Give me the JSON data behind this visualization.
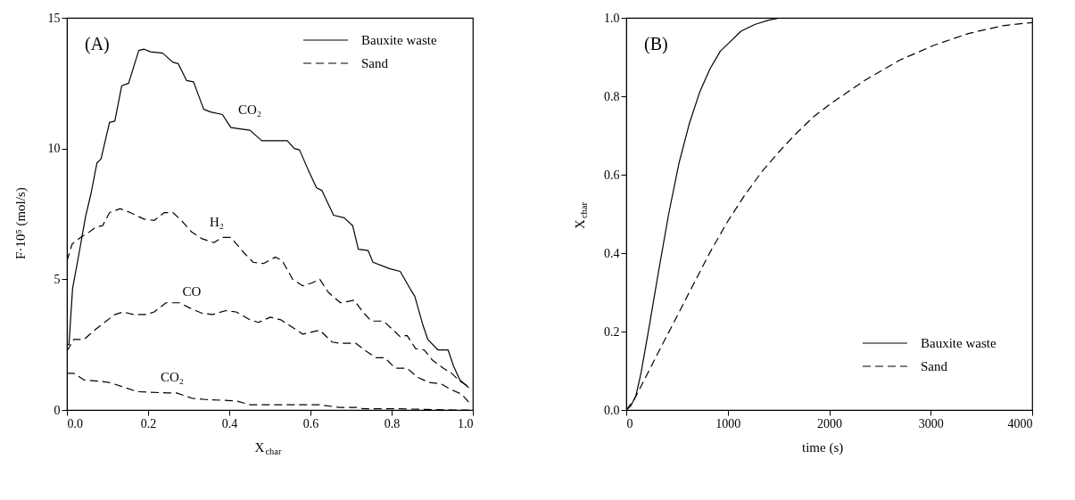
{
  "chart_data": [
    {
      "type": "line",
      "xlabel": "X$_{char}$",
      "ylabel": "F·10⁵ (mol/s)",
      "xlim": [
        0,
        1
      ],
      "ylim": [
        0,
        15
      ],
      "xticks": [
        {
          "value": 0,
          "label": "0.0"
        },
        {
          "value": 0.2,
          "label": "0.2"
        },
        {
          "value": 0.4,
          "label": "0.4"
        },
        {
          "value": 0.6,
          "label": "0.6"
        },
        {
          "value": 0.8,
          "label": "0.8"
        },
        {
          "value": 1,
          "label": "1.0"
        }
      ],
      "yticks": [
        0,
        5,
        10,
        15
      ],
      "grid": false,
      "legend": "top right",
      "annotations": [
        "(A)",
        "CO₂",
        "H₂",
        "CO",
        "CO₂"
      ],
      "series": [
        {
          "name": "Bauxite waste",
          "color": "#000000",
          "line_style": "solid",
          "x": [
            0,
            0.005,
            0.014,
            0.03,
            0.046,
            0.059,
            0.074,
            0.084,
            0.105,
            0.118,
            0.135,
            0.152,
            0.177,
            0.19,
            0.206,
            0.236,
            0.261,
            0.274,
            0.295,
            0.312,
            0.337,
            0.354,
            0.383,
            0.404,
            0.451,
            0.48,
            0.531,
            0.543,
            0.56,
            0.573,
            0.594,
            0.615,
            0.628,
            0.657,
            0.683,
            0.704,
            0.718,
            0.742,
            0.754,
            0.796,
            0.821,
            0.847,
            0.857,
            0.876,
            0.889,
            0.914,
            0.939,
            0.952,
            0.968,
            0.99
          ],
          "values": [
            2.5,
            2.5,
            4.65,
            6.0,
            7.4,
            8.25,
            9.45,
            9.6,
            11.0,
            11.05,
            12.4,
            12.5,
            13.75,
            13.8,
            13.7,
            13.65,
            13.3,
            13.25,
            12.6,
            12.55,
            11.5,
            11.4,
            11.3,
            10.8,
            10.7,
            10.3,
            10.3,
            10.3,
            10.0,
            9.95,
            9.2,
            8.5,
            8.4,
            7.45,
            7.35,
            7.05,
            6.15,
            6.1,
            5.65,
            5.4,
            5.3,
            4.6,
            4.35,
            3.3,
            2.7,
            2.3,
            2.3,
            1.7,
            1.15,
            0.85
          ]
        },
        {
          "name": "Sand",
          "color": "#000000",
          "line_style": "dashed",
          "x": [
            0,
            0.013,
            0.038,
            0.05,
            0.072,
            0.088,
            0.105,
            0.131,
            0.156,
            0.19,
            0.215,
            0.24,
            0.261,
            0.282,
            0.308,
            0.333,
            0.362,
            0.383,
            0.404,
            0.434,
            0.459,
            0.484,
            0.514,
            0.531,
            0.556,
            0.581,
            0.602,
            0.623,
            0.644,
            0.674,
            0.708,
            0.729,
            0.75,
            0.78,
            0.808,
            0.821,
            0.838,
            0.859,
            0.88,
            0.901,
            0.927,
            0.948,
            0.968,
            0.99
          ],
          "values": [
            5.7,
            6.35,
            6.65,
            6.75,
            7.0,
            7.05,
            7.55,
            7.7,
            7.55,
            7.3,
            7.25,
            7.55,
            7.55,
            7.25,
            6.8,
            6.55,
            6.4,
            6.6,
            6.6,
            6.05,
            5.65,
            5.6,
            5.85,
            5.7,
            5.0,
            4.75,
            4.85,
            5.0,
            4.5,
            4.1,
            4.2,
            3.75,
            3.4,
            3.4,
            3.0,
            2.8,
            2.85,
            2.35,
            2.3,
            1.9,
            1.6,
            1.4,
            1.1,
            0.9
          ]
        },
        {
          "color": "#000000",
          "line_style": "dashed",
          "x": [
            0,
            0.017,
            0.042,
            0.072,
            0.097,
            0.118,
            0.139,
            0.164,
            0.194,
            0.215,
            0.244,
            0.278,
            0.303,
            0.333,
            0.358,
            0.392,
            0.417,
            0.451,
            0.472,
            0.501,
            0.527,
            0.552,
            0.581,
            0.623,
            0.653,
            0.674,
            0.712,
            0.737,
            0.762,
            0.783,
            0.809,
            0.838,
            0.864,
            0.893,
            0.922,
            0.944,
            0.973,
            0.99
          ],
          "values": [
            2.25,
            2.7,
            2.7,
            3.1,
            3.4,
            3.65,
            3.75,
            3.65,
            3.65,
            3.75,
            4.1,
            4.1,
            3.9,
            3.7,
            3.65,
            3.8,
            3.75,
            3.45,
            3.35,
            3.55,
            3.45,
            3.2,
            2.9,
            3.05,
            2.6,
            2.55,
            2.55,
            2.25,
            2.0,
            2.0,
            1.6,
            1.6,
            1.25,
            1.05,
            1.0,
            0.8,
            0.6,
            0.3
          ]
        },
        {
          "color": "#000000",
          "line_style": "dashed",
          "x": [
            0,
            0.017,
            0.042,
            0.08,
            0.105,
            0.135,
            0.173,
            0.249,
            0.27,
            0.308,
            0.341,
            0.417,
            0.451,
            0.535,
            0.623,
            0.67,
            0.72,
            0.728,
            0.804,
            0.888,
            0.956,
            0.99
          ],
          "values": [
            1.4,
            1.4,
            1.15,
            1.1,
            1.05,
            0.9,
            0.7,
            0.65,
            0.65,
            0.45,
            0.4,
            0.35,
            0.2,
            0.2,
            0.2,
            0.1,
            0.1,
            0.05,
            0.05,
            0.02,
            0,
            0
          ]
        }
      ]
    },
    {
      "type": "line",
      "xlabel": "time (s)",
      "ylabel": "X$_{char}$",
      "xlim": [
        0,
        4000
      ],
      "ylim": [
        0,
        1
      ],
      "xticks": [
        0,
        1000,
        2000,
        3000,
        4000
      ],
      "yticks": [
        {
          "value": 0,
          "label": "0.0"
        },
        {
          "value": 0.2,
          "label": "0.2"
        },
        {
          "value": 0.4,
          "label": "0.4"
        },
        {
          "value": 0.6,
          "label": "0.6"
        },
        {
          "value": 0.8,
          "label": "0.8"
        },
        {
          "value": 1,
          "label": "1.0"
        }
      ],
      "grid": false,
      "legend": "bottom right",
      "annotations": [
        "(B)"
      ],
      "series": [
        {
          "name": "Bauxite waste",
          "color": "#000000",
          "line_style": "solid",
          "x": [
            0,
            44,
            95,
            146,
            231,
            316,
            418,
            520,
            621,
            723,
            825,
            927,
            1028,
            1130,
            1266,
            1402,
            1521,
            4000
          ],
          "values": [
            0,
            0.01,
            0.036,
            0.095,
            0.22,
            0.35,
            0.5,
            0.63,
            0.73,
            0.81,
            0.87,
            0.915,
            0.94,
            0.966,
            0.983,
            0.994,
            1.0,
            1.0
          ]
        },
        {
          "name": "Sand",
          "color": "#000000",
          "line_style": "dashed",
          "x": [
            0,
            78,
            180,
            316,
            486,
            655,
            825,
            995,
            1165,
            1334,
            1504,
            1674,
            1843,
            2013,
            2353,
            2693,
            3032,
            3372,
            3711,
            4000
          ],
          "values": [
            0,
            0.027,
            0.078,
            0.147,
            0.232,
            0.317,
            0.402,
            0.479,
            0.547,
            0.607,
            0.658,
            0.705,
            0.747,
            0.781,
            0.841,
            0.892,
            0.93,
            0.96,
            0.98,
            0.988
          ]
        }
      ]
    }
  ]
}
